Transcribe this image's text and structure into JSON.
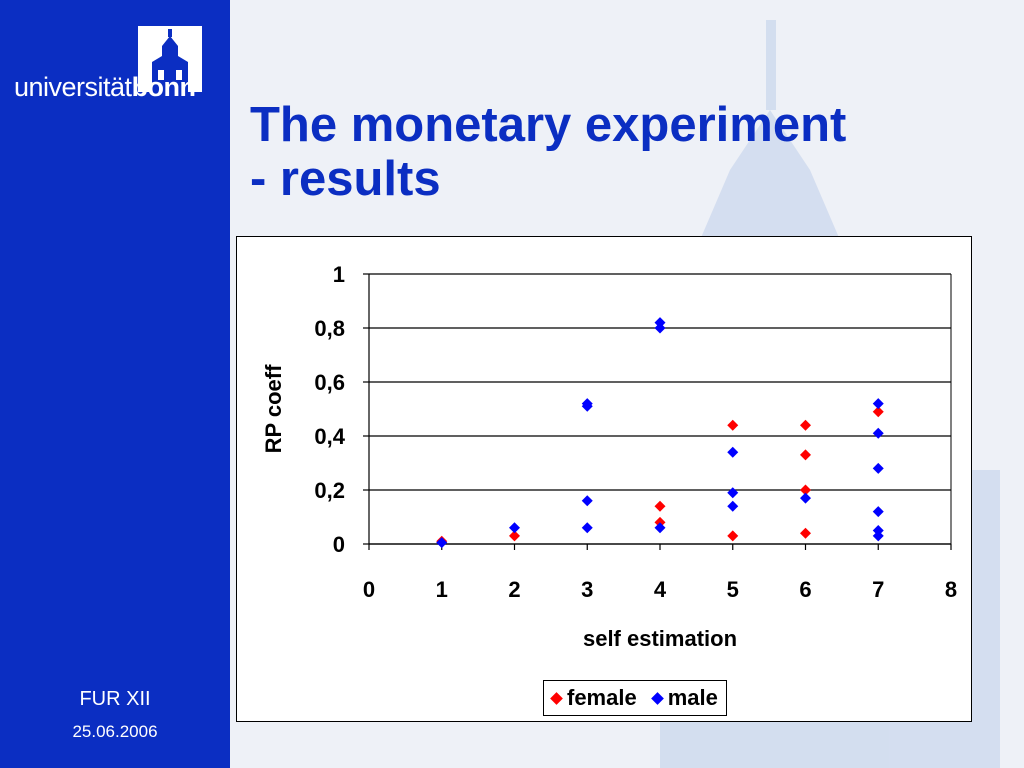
{
  "sidebar": {
    "logo_text_regular": "universität",
    "logo_text_bold": "bonn",
    "event": "FUR XII",
    "date": "25.06.2006"
  },
  "slide": {
    "title_line1": "The monetary experiment",
    "title_line2": "- results"
  },
  "colors": {
    "sidebar_blue": "#0b2ec2",
    "title_blue": "#0b2ec2",
    "female": "#ff0000",
    "male": "#0000ff"
  },
  "chart_data": {
    "type": "scatter",
    "title": "",
    "xlabel": "self estimation",
    "ylabel": "RP coeff",
    "xlim": [
      0,
      8
    ],
    "ylim": [
      0,
      1
    ],
    "x_ticks": [
      "0",
      "1",
      "2",
      "3",
      "4",
      "5",
      "6",
      "7",
      "8"
    ],
    "y_ticks": [
      "0",
      "0,2",
      "0,4",
      "0,6",
      "0,8",
      "1"
    ],
    "y_tick_values": [
      0,
      0.2,
      0.4,
      0.6,
      0.8,
      1
    ],
    "grid": "horizontal",
    "legend_placement": "bottom",
    "series": [
      {
        "name": "female",
        "color": "#ff0000",
        "points": [
          [
            1,
            0.01
          ],
          [
            2,
            0.03
          ],
          [
            4,
            0.14
          ],
          [
            4,
            0.08
          ],
          [
            5,
            0.44
          ],
          [
            5,
            0.03
          ],
          [
            6,
            0.44
          ],
          [
            6,
            0.33
          ],
          [
            6,
            0.2
          ],
          [
            6,
            0.04
          ],
          [
            7,
            0.49
          ]
        ]
      },
      {
        "name": "male",
        "color": "#0000ff",
        "points": [
          [
            1,
            0.005
          ],
          [
            2,
            0.06
          ],
          [
            3,
            0.51
          ],
          [
            3,
            0.52
          ],
          [
            3,
            0.16
          ],
          [
            3,
            0.06
          ],
          [
            4,
            0.82
          ],
          [
            4,
            0.8
          ],
          [
            4,
            0.06
          ],
          [
            5,
            0.34
          ],
          [
            5,
            0.19
          ],
          [
            5,
            0.14
          ],
          [
            6,
            0.17
          ],
          [
            7,
            0.52
          ],
          [
            7,
            0.41
          ],
          [
            7,
            0.28
          ],
          [
            7,
            0.12
          ],
          [
            7,
            0.05
          ],
          [
            7,
            0.03
          ]
        ]
      }
    ]
  }
}
